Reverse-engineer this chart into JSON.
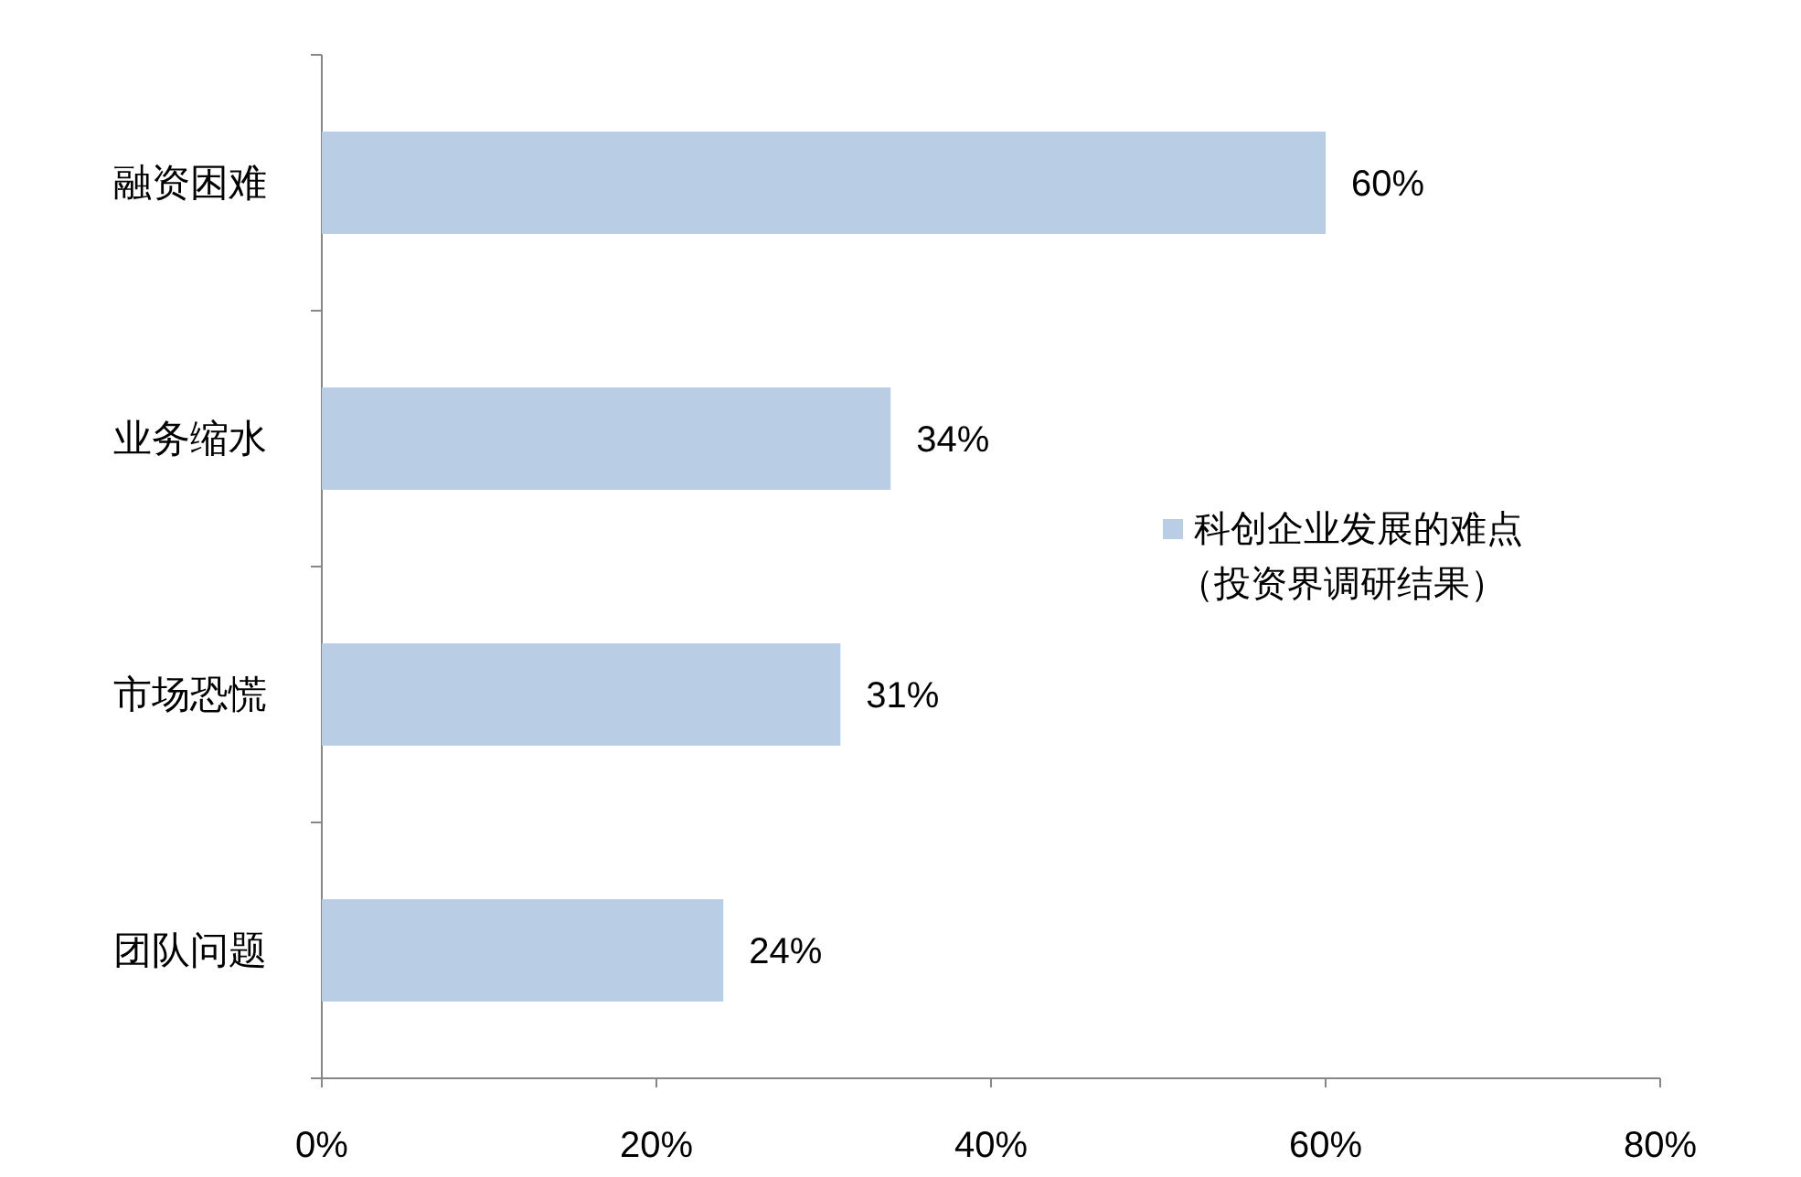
{
  "chart_data": {
    "type": "bar",
    "orientation": "horizontal",
    "categories": [
      "融资困难",
      "业务缩水",
      "市场恐慌",
      "团队问题"
    ],
    "series": [
      {
        "name": "科创企业发展的难点（投资界调研结果）",
        "color": "#b9cde5",
        "values": [
          60,
          34,
          31,
          24
        ],
        "value_labels": [
          "60%",
          "34%",
          "31%",
          "24%"
        ]
      }
    ],
    "xlim": [
      0,
      80
    ],
    "xticks": [
      {
        "value": 0,
        "label": "0%"
      },
      {
        "value": 20,
        "label": "20%"
      },
      {
        "value": 40,
        "label": "40%"
      },
      {
        "value": 60,
        "label": "60%"
      },
      {
        "value": 80,
        "label": "80%"
      }
    ],
    "legend": "right"
  }
}
